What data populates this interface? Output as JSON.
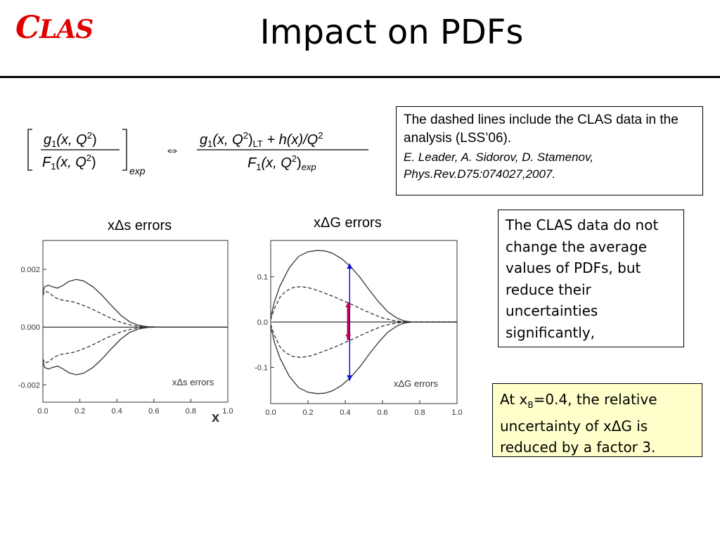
{
  "header": {
    "logo_big": "C",
    "logo_rest": "LAS",
    "title": "Impact on PDFs"
  },
  "reference_box": {
    "text": "The dashed lines include the CLAS data in the analysis (LSS’06).",
    "citation_line1": "E. Leader, A. Sidorov, D. Stamenov,",
    "citation_line2": "Phys.Rev.D75:074027,2007."
  },
  "note_box": {
    "text": "The CLAS data do not change the average values of PDFs, but reduce their uncertainties significantly,"
  },
  "highlight_box": {
    "prefix": "At x",
    "subscript": "B",
    "suffix": "=0.4, the relative uncertainty of xΔG is reduced by a factor 3."
  },
  "formula": {
    "g1": "g",
    "sub1": "1",
    "args": "(x, Q",
    "sq": "2",
    "close": ")",
    "F1": "F",
    "exp": "exp",
    "arrow": "⇔",
    "lt": "LT",
    "plus_h": " + h(x)/Q"
  },
  "colors": {
    "logo": "#e00000",
    "arrow_blue": "#1010d0",
    "arrow_red": "#c0004a",
    "arrow_purple": "#800080",
    "highlight_bg": "#ffffcc"
  },
  "chart_data": [
    {
      "type": "line",
      "title": "xΔs errors",
      "inner_label": "xΔs   errors",
      "xlabel": "x",
      "xlim": [
        0.0,
        1.0
      ],
      "ylim": [
        -0.0026,
        0.003
      ],
      "xticks": [
        "0.0",
        "0.2",
        "0.4",
        "0.6",
        "0.8",
        "1.0"
      ],
      "yticks": [
        "0.002",
        "0.000",
        "-0.002"
      ],
      "ytick_values": [
        0.002,
        0.0,
        -0.002
      ],
      "series": [
        {
          "style": "solid",
          "x": [
            0.0,
            0.01,
            0.03,
            0.05,
            0.08,
            0.11,
            0.14,
            0.18,
            0.22,
            0.27,
            0.32,
            0.37,
            0.42,
            0.47,
            0.52,
            0.57,
            0.62,
            0.7,
            0.8,
            1.0
          ],
          "y": [
            0.0012,
            0.0014,
            0.00145,
            0.0014,
            0.00135,
            0.00145,
            0.00158,
            0.00165,
            0.0016,
            0.0014,
            0.0011,
            0.00075,
            0.00042,
            0.00018,
            6e-05,
            1e-05,
            0.0,
            0.0,
            0.0,
            0.0
          ]
        },
        {
          "style": "dashed",
          "x": [
            0.0,
            0.01,
            0.03,
            0.06,
            0.09,
            0.12,
            0.16,
            0.2,
            0.24,
            0.28,
            0.32,
            0.37,
            0.42,
            0.47,
            0.52,
            0.57,
            0.62,
            0.7,
            0.8,
            1.0
          ],
          "y": [
            0.0011,
            0.00125,
            0.0012,
            0.00105,
            0.00095,
            0.00092,
            0.00088,
            0.0008,
            0.0007,
            0.00058,
            0.00045,
            0.0003,
            0.00017,
            8e-05,
            3e-05,
            1e-05,
            0.0,
            0.0,
            0.0,
            0.0
          ]
        },
        {
          "style": "dashed",
          "x": [
            0.0,
            0.01,
            0.03,
            0.06,
            0.09,
            0.12,
            0.16,
            0.2,
            0.24,
            0.28,
            0.32,
            0.37,
            0.42,
            0.47,
            0.52,
            0.57,
            0.62,
            0.7,
            0.8,
            1.0
          ],
          "y": [
            -0.0011,
            -0.00125,
            -0.0012,
            -0.00105,
            -0.00095,
            -0.00092,
            -0.00088,
            -0.0008,
            -0.0007,
            -0.00058,
            -0.00045,
            -0.0003,
            -0.00017,
            -8e-05,
            -3e-05,
            -1e-05,
            0.0,
            0.0,
            0.0,
            0.0
          ]
        },
        {
          "style": "solid",
          "x": [
            0.0,
            0.01,
            0.03,
            0.05,
            0.08,
            0.11,
            0.14,
            0.18,
            0.22,
            0.27,
            0.32,
            0.37,
            0.42,
            0.47,
            0.52,
            0.57,
            0.62,
            0.7,
            0.8,
            1.0
          ],
          "y": [
            -0.0012,
            -0.0014,
            -0.00145,
            -0.0014,
            -0.00135,
            -0.00145,
            -0.00158,
            -0.00165,
            -0.0016,
            -0.0014,
            -0.0011,
            -0.00075,
            -0.00042,
            -0.00018,
            -6e-05,
            -1e-05,
            0.0,
            0.0,
            0.0,
            0.0
          ]
        }
      ]
    },
    {
      "type": "line",
      "title": "xΔG errors",
      "inner_label": "xΔG   errors",
      "xlim": [
        0.0,
        1.0
      ],
      "ylim": [
        -0.18,
        0.18
      ],
      "xticks": [
        "0.0",
        "0.2",
        "0.4",
        "0.6",
        "0.8",
        "1.0"
      ],
      "yticks": [
        "0.1",
        "0.0",
        "-0.1"
      ],
      "ytick_values": [
        0.1,
        0.0,
        -0.1
      ],
      "series": [
        {
          "style": "solid",
          "x": [
            0.0,
            0.02,
            0.05,
            0.1,
            0.15,
            0.2,
            0.25,
            0.29,
            0.33,
            0.38,
            0.43,
            0.48,
            0.53,
            0.58,
            0.63,
            0.68,
            0.72,
            0.76,
            0.8,
            1.0
          ],
          "y": [
            0.01,
            0.045,
            0.08,
            0.12,
            0.145,
            0.155,
            0.158,
            0.157,
            0.152,
            0.14,
            0.122,
            0.098,
            0.07,
            0.044,
            0.022,
            0.008,
            0.002,
            0.0,
            0.0,
            0.0
          ]
        },
        {
          "style": "dashed",
          "x": [
            0.0,
            0.02,
            0.05,
            0.08,
            0.12,
            0.16,
            0.2,
            0.25,
            0.3,
            0.35,
            0.4,
            0.45,
            0.5,
            0.55,
            0.6,
            0.65,
            0.7,
            0.75,
            0.8,
            1.0
          ],
          "y": [
            0.005,
            0.03,
            0.055,
            0.068,
            0.076,
            0.078,
            0.076,
            0.07,
            0.062,
            0.054,
            0.045,
            0.036,
            0.026,
            0.017,
            0.009,
            0.004,
            0.001,
            0.0,
            0.0,
            0.0
          ]
        },
        {
          "style": "dashed",
          "x": [
            0.0,
            0.02,
            0.05,
            0.08,
            0.12,
            0.16,
            0.2,
            0.25,
            0.3,
            0.35,
            0.4,
            0.45,
            0.5,
            0.55,
            0.6,
            0.65,
            0.7,
            0.75,
            0.8,
            1.0
          ],
          "y": [
            -0.005,
            -0.03,
            -0.055,
            -0.068,
            -0.076,
            -0.078,
            -0.076,
            -0.07,
            -0.062,
            -0.054,
            -0.045,
            -0.036,
            -0.026,
            -0.017,
            -0.009,
            -0.004,
            -0.001,
            0.0,
            0.0,
            0.0
          ]
        },
        {
          "style": "solid",
          "x": [
            0.0,
            0.02,
            0.05,
            0.1,
            0.15,
            0.2,
            0.25,
            0.29,
            0.33,
            0.38,
            0.43,
            0.48,
            0.53,
            0.58,
            0.63,
            0.68,
            0.72,
            0.76,
            0.8,
            1.0
          ],
          "y": [
            -0.01,
            -0.045,
            -0.08,
            -0.12,
            -0.145,
            -0.155,
            -0.158,
            -0.157,
            -0.152,
            -0.14,
            -0.122,
            -0.098,
            -0.07,
            -0.044,
            -0.022,
            -0.008,
            -0.002,
            0.0,
            0.0,
            0.0
          ]
        }
      ],
      "arrows": [
        {
          "x": 0.42,
          "y_from": -0.13,
          "y_to": 0.13,
          "color": "#1010d0"
        },
        {
          "x": 0.42,
          "y_from": -0.04,
          "y_to": 0.045,
          "color": "#c0004a"
        }
      ]
    }
  ]
}
